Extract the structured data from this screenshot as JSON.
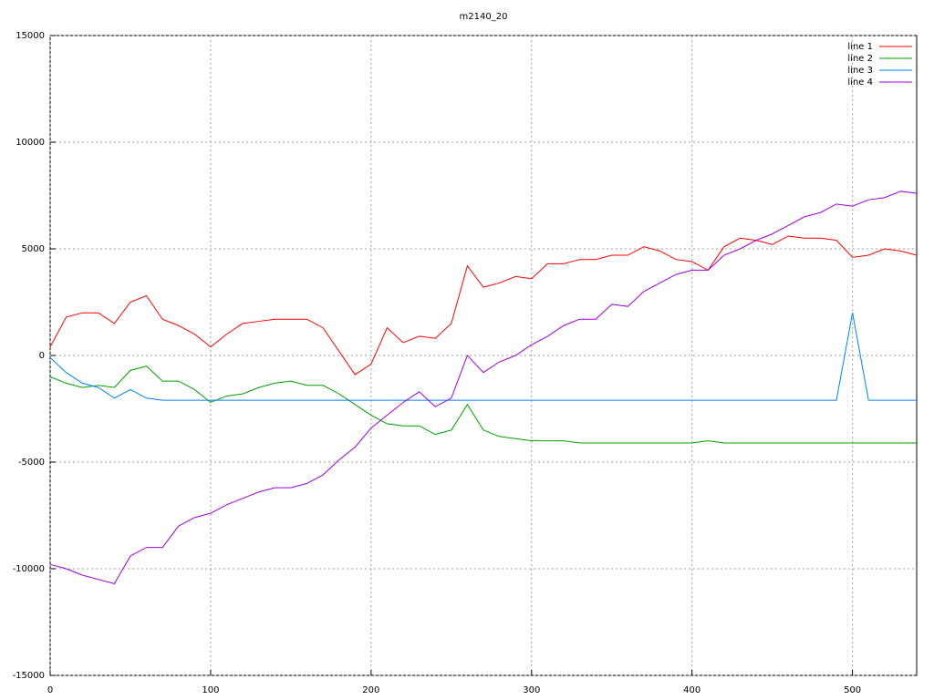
{
  "chart_data": {
    "type": "line",
    "title": "m2140_20",
    "x": [
      0,
      10,
      20,
      30,
      40,
      50,
      60,
      70,
      80,
      90,
      100,
      110,
      120,
      130,
      140,
      150,
      160,
      170,
      180,
      190,
      200,
      210,
      220,
      230,
      240,
      250,
      260,
      270,
      280,
      290,
      300,
      310,
      320,
      330,
      340,
      350,
      360,
      370,
      380,
      390,
      400,
      410,
      420,
      430,
      440,
      450,
      460,
      470,
      480,
      490,
      500,
      510,
      520,
      530,
      540
    ],
    "series": [
      {
        "name": "line 1",
        "color": "#ff0000",
        "values": [
          400,
          1800,
          2000,
          2000,
          1500,
          2500,
          2800,
          1700,
          1400,
          1000,
          400,
          1000,
          1500,
          1600,
          1700,
          1700,
          1700,
          1300,
          200,
          -900,
          -400,
          1300,
          600,
          900,
          800,
          1500,
          4200,
          3200,
          3400,
          3700,
          3600,
          4300,
          4300,
          4500,
          4500,
          4700,
          4700,
          5100,
          4900,
          4500,
          4400,
          4000,
          5100,
          5500,
          5400,
          5200,
          5600,
          5500,
          5500,
          5400,
          4600,
          4700,
          5000,
          4900,
          4700
        ]
      },
      {
        "name": "line 2",
        "color": "#00a000",
        "values": [
          -1000,
          -1300,
          -1500,
          -1400,
          -1500,
          -700,
          -500,
          -1200,
          -1200,
          -1600,
          -2200,
          -1900,
          -1800,
          -1500,
          -1300,
          -1200,
          -1400,
          -1400,
          -1800,
          -2300,
          -2800,
          -3200,
          -3300,
          -3300,
          -3700,
          -3500,
          -2300,
          -3500,
          -3800,
          -3900,
          -4000,
          -4000,
          -4000,
          -4100,
          -4100,
          -4100,
          -4100,
          -4100,
          -4100,
          -4100,
          -4100,
          -4000,
          -4100,
          -4100,
          -4100,
          -4100,
          -4100,
          -4100,
          -4100,
          -4100,
          -4100,
          -4100,
          -4100,
          -4100,
          -4100
        ]
      },
      {
        "name": "line 3",
        "color": "#0080ff",
        "values": [
          -100,
          -800,
          -1300,
          -1500,
          -2000,
          -1600,
          -2000,
          -2100,
          -2100,
          -2100,
          -2100,
          -2100,
          -2100,
          -2100,
          -2100,
          -2100,
          -2100,
          -2100,
          -2100,
          -2100,
          -2100,
          -2100,
          -2100,
          -2100,
          -2100,
          -2100,
          -2100,
          -2100,
          -2100,
          -2100,
          -2100,
          -2100,
          -2100,
          -2100,
          -2100,
          -2100,
          -2100,
          -2100,
          -2100,
          -2100,
          -2100,
          -2100,
          -2100,
          -2100,
          -2100,
          -2100,
          -2100,
          -2100,
          -2100,
          -2100,
          2000,
          -2100,
          -2100,
          -2100,
          -2100
        ]
      },
      {
        "name": "line 4",
        "color": "#a000e0",
        "values": [
          -9800,
          -10000,
          -10300,
          -10500,
          -10700,
          -9400,
          -9000,
          -9000,
          -8000,
          -7600,
          -7400,
          -7000,
          -6700,
          -6400,
          -6200,
          -6200,
          -6000,
          -5600,
          -4900,
          -4300,
          -3400,
          -2800,
          -2200,
          -1700,
          -2400,
          -2000,
          0,
          -800,
          -300,
          0,
          500,
          900,
          1400,
          1700,
          1700,
          2400,
          2300,
          3000,
          3400,
          3800,
          4000,
          4000,
          4700,
          5000,
          5400,
          5700,
          6100,
          6500,
          6700,
          7100,
          7000,
          7300,
          7400,
          7700,
          7600
        ]
      }
    ],
    "xlim": [
      0,
      540
    ],
    "xticks": [
      0,
      100,
      200,
      300,
      400,
      500
    ],
    "ylim": [
      -15000,
      15000
    ],
    "yticks": [
      -15000,
      -10000,
      -5000,
      0,
      5000,
      10000,
      15000
    ],
    "grid": true,
    "legend": "top-right"
  }
}
